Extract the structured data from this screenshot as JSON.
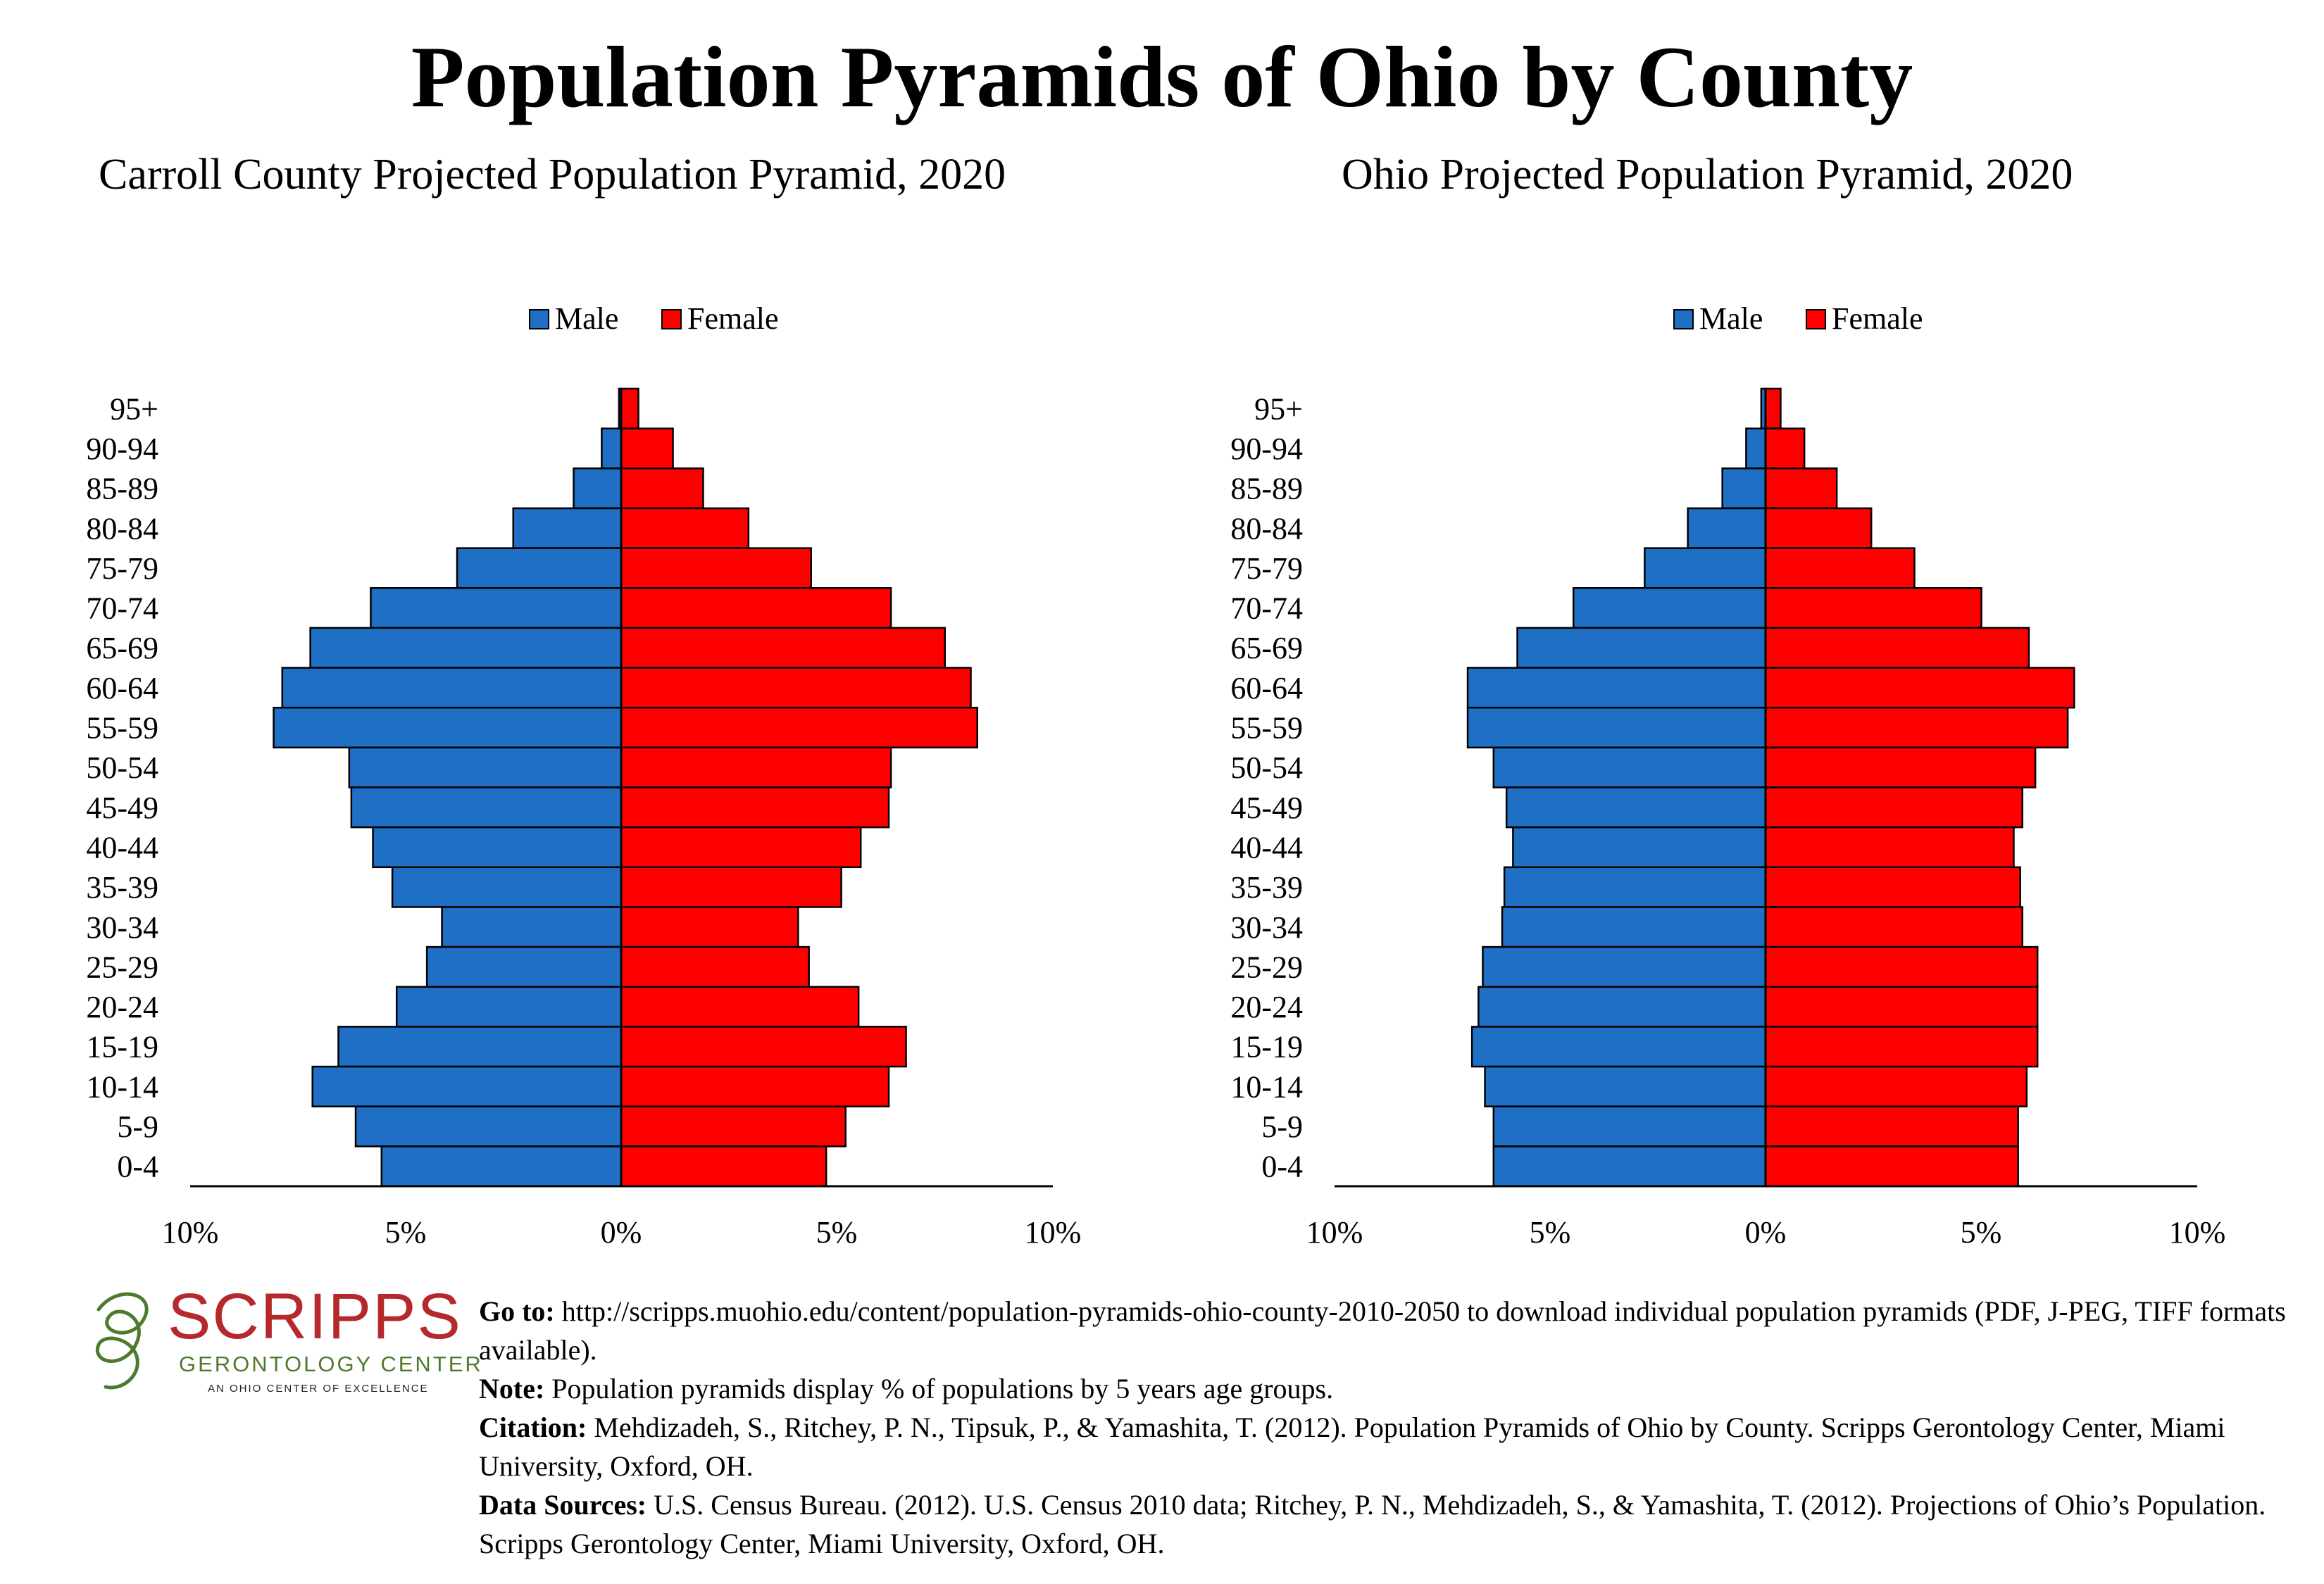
{
  "title": "Population Pyramids of Ohio by County",
  "colors": {
    "male": "#1f6fc4",
    "female": "#ff0000",
    "outline": "#000000"
  },
  "legend": {
    "male": "Male",
    "female": "Female"
  },
  "age_groups": [
    "95+",
    "90-94",
    "85-89",
    "80-84",
    "75-79",
    "70-74",
    "65-69",
    "60-64",
    "55-59",
    "50-54",
    "45-49",
    "40-44",
    "35-39",
    "30-34",
    "25-29",
    "20-24",
    "15-19",
    "10-14",
    "5-9",
    "0-4"
  ],
  "x_ticks": [
    "10%",
    "5%",
    "0%",
    "5%",
    "10%"
  ],
  "chart_data": [
    {
      "type": "bar",
      "orientation": "horizontal-pyramid",
      "title": "Carroll County Projected Population Pyramid, 2020",
      "categories": [
        "95+",
        "90-94",
        "85-89",
        "80-84",
        "75-79",
        "70-74",
        "65-69",
        "60-64",
        "55-59",
        "50-54",
        "45-49",
        "40-44",
        "35-39",
        "30-34",
        "25-29",
        "20-24",
        "15-19",
        "10-14",
        "5-9",
        "0-4"
      ],
      "series": [
        {
          "name": "Male",
          "values": [
            0.05,
            0.45,
            1.1,
            2.5,
            3.8,
            5.8,
            7.2,
            7.85,
            8.05,
            6.3,
            6.25,
            5.75,
            5.3,
            4.15,
            4.5,
            5.2,
            6.55,
            7.15,
            6.15,
            5.55
          ]
        },
        {
          "name": "Female",
          "values": [
            0.4,
            1.2,
            1.9,
            2.95,
            4.4,
            6.25,
            7.5,
            8.1,
            8.25,
            6.25,
            6.2,
            5.55,
            5.1,
            4.1,
            4.35,
            5.5,
            6.6,
            6.2,
            5.2,
            4.75
          ]
        }
      ],
      "xlim": [
        -10,
        10
      ],
      "legend_position": "top-center",
      "grid": false
    },
    {
      "type": "bar",
      "orientation": "horizontal-pyramid",
      "title": "Ohio Projected Population Pyramid, 2020",
      "categories": [
        "95+",
        "90-94",
        "85-89",
        "80-84",
        "75-79",
        "70-74",
        "65-69",
        "60-64",
        "55-59",
        "50-54",
        "45-49",
        "40-44",
        "35-39",
        "30-34",
        "25-29",
        "20-24",
        "15-19",
        "10-14",
        "5-9",
        "0-4"
      ],
      "series": [
        {
          "name": "Male",
          "values": [
            0.1,
            0.45,
            1.0,
            1.8,
            2.8,
            4.45,
            5.75,
            6.9,
            6.9,
            6.3,
            6.0,
            5.85,
            6.05,
            6.1,
            6.55,
            6.65,
            6.8,
            6.5,
            6.3,
            6.3
          ]
        },
        {
          "name": "Female",
          "values": [
            0.35,
            0.9,
            1.65,
            2.45,
            3.45,
            5.0,
            6.1,
            7.15,
            7.0,
            6.25,
            5.95,
            5.75,
            5.9,
            5.95,
            6.3,
            6.3,
            6.3,
            6.05,
            5.85,
            5.85
          ]
        }
      ],
      "xlim": [
        -10,
        10
      ],
      "legend_position": "top-center",
      "grid": false
    }
  ],
  "logo": {
    "name": "SCRIPPS",
    "subtitle": "GERONTOLOGY CENTER",
    "tagline": "AN OHIO CENTER OF EXCELLENCE"
  },
  "notes": {
    "goto_label": "Go to:",
    "goto_text": " http://scripps.muohio.edu/content/population-pyramids-ohio-county-2010-2050 to download individual population pyramids (PDF, J-PEG, TIFF formats available).",
    "note_label": "Note:",
    "note_text": " Population pyramids display % of populations by 5 years age groups.",
    "citation_label": "Citation:",
    "citation_text": " Mehdizadeh, S., Ritchey, P. N., Tipsuk, P., & Yamashita, T. (2012). Population Pyramids of Ohio by County. Scripps Gerontology Center, Miami University, Oxford, OH.",
    "sources_label": "Data Sources:",
    "sources_text": " U.S. Census Bureau. (2012). U.S. Census 2010 data; Ritchey, P. N., Mehdizadeh, S., & Yamashita, T. (2012). Projections of Ohio’s Population. Scripps Gerontology Center, Miami University, Oxford, OH."
  }
}
